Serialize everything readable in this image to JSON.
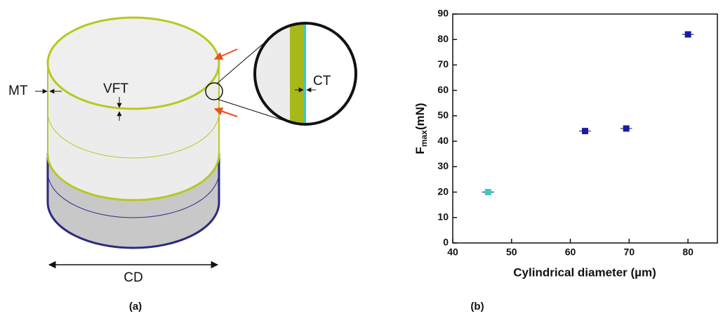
{
  "diagram": {
    "labels": {
      "mt": "MT",
      "vft": "VFT",
      "ct": "CT",
      "cd": "CD"
    },
    "caption": "(a)"
  },
  "chart_data": {
    "type": "scatter",
    "caption": "(b)",
    "x_label": "Cylindrical diameter (µm)",
    "y_label": {
      "main": "F",
      "sub": "max",
      "unit": "(mN)"
    },
    "x": [
      46,
      62.5,
      69.5,
      80
    ],
    "values": [
      20,
      44,
      45,
      82
    ],
    "x_errors": [
      1,
      1,
      1,
      1
    ],
    "colors": [
      "#3cc8c8",
      "#1a1aa8",
      "#1a1aa8",
      "#1a1aa8"
    ],
    "xlim": [
      40,
      85
    ],
    "xticks": [
      40,
      50,
      60,
      70,
      80
    ],
    "ylim": [
      0,
      90
    ],
    "yticks": [
      0,
      10,
      20,
      30,
      40,
      50,
      60,
      70,
      80,
      90
    ]
  }
}
